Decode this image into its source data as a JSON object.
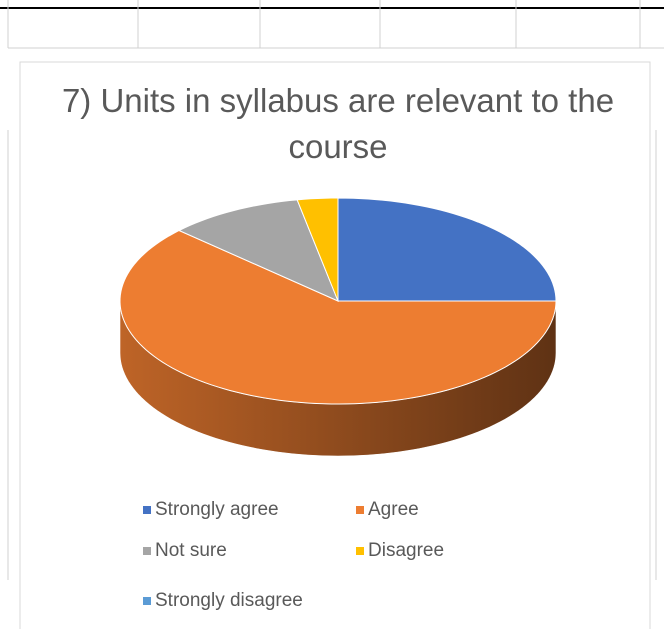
{
  "chart_data": {
    "type": "pie",
    "title": "7) Units in syllabus are relevant to the course",
    "categories": [
      "Strongly agree",
      "Agree",
      "Not sure",
      "Disagree",
      "Strongly disagree"
    ],
    "values": [
      25,
      62,
      10,
      3,
      0
    ],
    "colors": [
      "#4472c4",
      "#ed7d31",
      "#a5a5a5",
      "#ffc000",
      "#5b9bd5"
    ],
    "legend": "bottom",
    "three_d": true
  }
}
